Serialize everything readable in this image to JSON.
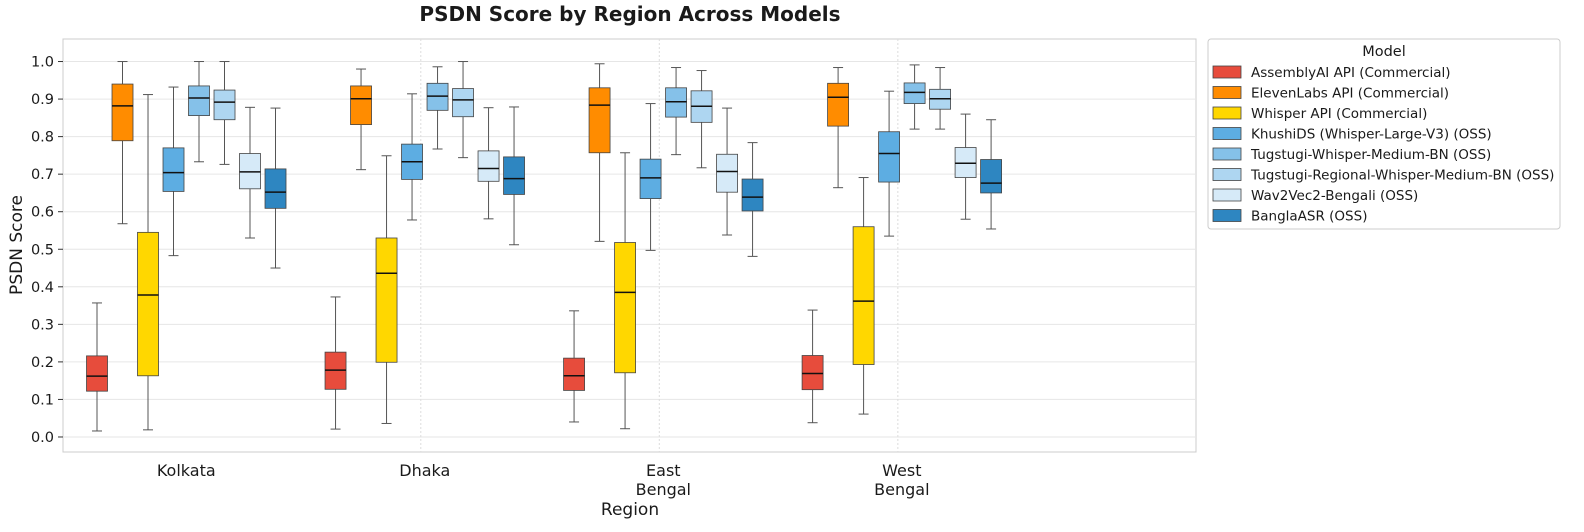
{
  "chart_data": {
    "type": "box",
    "title": "PSDN Score by Region Across Models",
    "xlabel": "Region",
    "ylabel": "PSDN Score",
    "ylim": [
      -0.04,
      1.06
    ],
    "yticks": [
      "0.0",
      "0.1",
      "0.2",
      "0.3",
      "0.4",
      "0.5",
      "0.6",
      "0.7",
      "0.8",
      "0.9",
      "1.0"
    ],
    "grid": true,
    "legend_title": "Model",
    "legend_position": "outside-right",
    "categories": [
      [
        "Kolkata"
      ],
      [
        "Dhaka"
      ],
      [
        "East",
        "Bengal"
      ],
      [
        "West",
        "Bengal"
      ]
    ],
    "series": [
      {
        "name": "AssemblyAI API (Commercial)",
        "color": "#e74c3c",
        "boxes": [
          {
            "min": 0.016,
            "q1": 0.122,
            "median": 0.162,
            "q3": 0.216,
            "max": 0.357
          },
          {
            "min": 0.021,
            "q1": 0.127,
            "median": 0.178,
            "q3": 0.226,
            "max": 0.373
          },
          {
            "min": 0.04,
            "q1": 0.124,
            "median": 0.163,
            "q3": 0.21,
            "max": 0.336
          },
          {
            "min": 0.038,
            "q1": 0.126,
            "median": 0.169,
            "q3": 0.217,
            "max": 0.338
          }
        ]
      },
      {
        "name": "ElevenLabs API (Commercial)",
        "color": "#ff8c00",
        "boxes": [
          {
            "min": 0.568,
            "q1": 0.789,
            "median": 0.882,
            "q3": 0.94,
            "max": 1.0
          },
          {
            "min": 0.712,
            "q1": 0.832,
            "median": 0.901,
            "q3": 0.935,
            "max": 0.98
          },
          {
            "min": 0.521,
            "q1": 0.757,
            "median": 0.884,
            "q3": 0.93,
            "max": 0.994
          },
          {
            "min": 0.664,
            "q1": 0.828,
            "median": 0.905,
            "q3": 0.942,
            "max": 0.984
          }
        ]
      },
      {
        "name": "Whisper API (Commercial)",
        "color": "#ffd700",
        "boxes": [
          {
            "min": 0.019,
            "q1": 0.163,
            "median": 0.378,
            "q3": 0.545,
            "max": 0.912
          },
          {
            "min": 0.036,
            "q1": 0.199,
            "median": 0.436,
            "q3": 0.53,
            "max": 0.749
          },
          {
            "min": 0.022,
            "q1": 0.171,
            "median": 0.385,
            "q3": 0.518,
            "max": 0.757
          },
          {
            "min": 0.061,
            "q1": 0.193,
            "median": 0.362,
            "q3": 0.56,
            "max": 0.691
          }
        ]
      },
      {
        "name": "KhushiDS (Whisper-Large-V3) (OSS)",
        "color": "#5dade2",
        "boxes": [
          {
            "min": 0.483,
            "q1": 0.654,
            "median": 0.704,
            "q3": 0.77,
            "max": 0.932
          },
          {
            "min": 0.578,
            "q1": 0.686,
            "median": 0.733,
            "q3": 0.78,
            "max": 0.914
          },
          {
            "min": 0.497,
            "q1": 0.635,
            "median": 0.69,
            "q3": 0.74,
            "max": 0.888
          },
          {
            "min": 0.535,
            "q1": 0.679,
            "median": 0.755,
            "q3": 0.813,
            "max": 0.921
          }
        ]
      },
      {
        "name": "Tugstugi-Whisper-Medium-BN (OSS)",
        "color": "#85c1e9",
        "boxes": [
          {
            "min": 0.733,
            "q1": 0.856,
            "median": 0.903,
            "q3": 0.935,
            "max": 1.0
          },
          {
            "min": 0.767,
            "q1": 0.87,
            "median": 0.908,
            "q3": 0.942,
            "max": 0.986
          },
          {
            "min": 0.752,
            "q1": 0.852,
            "median": 0.893,
            "q3": 0.93,
            "max": 0.984
          },
          {
            "min": 0.82,
            "q1": 0.888,
            "median": 0.918,
            "q3": 0.943,
            "max": 0.991
          }
        ]
      },
      {
        "name": "Tugstugi-Regional-Whisper-Medium-BN (OSS)",
        "color": "#aed6f1",
        "boxes": [
          {
            "min": 0.726,
            "q1": 0.845,
            "median": 0.892,
            "q3": 0.924,
            "max": 1.0
          },
          {
            "min": 0.744,
            "q1": 0.853,
            "median": 0.898,
            "q3": 0.928,
            "max": 1.0
          },
          {
            "min": 0.717,
            "q1": 0.838,
            "median": 0.881,
            "q3": 0.922,
            "max": 0.976
          },
          {
            "min": 0.82,
            "q1": 0.873,
            "median": 0.901,
            "q3": 0.926,
            "max": 0.984
          }
        ]
      },
      {
        "name": "Wav2Vec2-Bengali (OSS)",
        "color": "#d6eaf8",
        "boxes": [
          {
            "min": 0.53,
            "q1": 0.661,
            "median": 0.706,
            "q3": 0.755,
            "max": 0.878
          },
          {
            "min": 0.581,
            "q1": 0.681,
            "median": 0.715,
            "q3": 0.762,
            "max": 0.877
          },
          {
            "min": 0.538,
            "q1": 0.652,
            "median": 0.707,
            "q3": 0.753,
            "max": 0.876
          },
          {
            "min": 0.58,
            "q1": 0.691,
            "median": 0.729,
            "q3": 0.771,
            "max": 0.86
          }
        ]
      },
      {
        "name": "BanglaASR (OSS)",
        "color": "#2e86c1",
        "boxes": [
          {
            "min": 0.45,
            "q1": 0.609,
            "median": 0.652,
            "q3": 0.714,
            "max": 0.876
          },
          {
            "min": 0.512,
            "q1": 0.646,
            "median": 0.688,
            "q3": 0.746,
            "max": 0.879
          },
          {
            "min": 0.481,
            "q1": 0.602,
            "median": 0.639,
            "q3": 0.687,
            "max": 0.784
          },
          {
            "min": 0.554,
            "q1": 0.65,
            "median": 0.676,
            "q3": 0.739,
            "max": 0.845
          }
        ]
      }
    ]
  }
}
